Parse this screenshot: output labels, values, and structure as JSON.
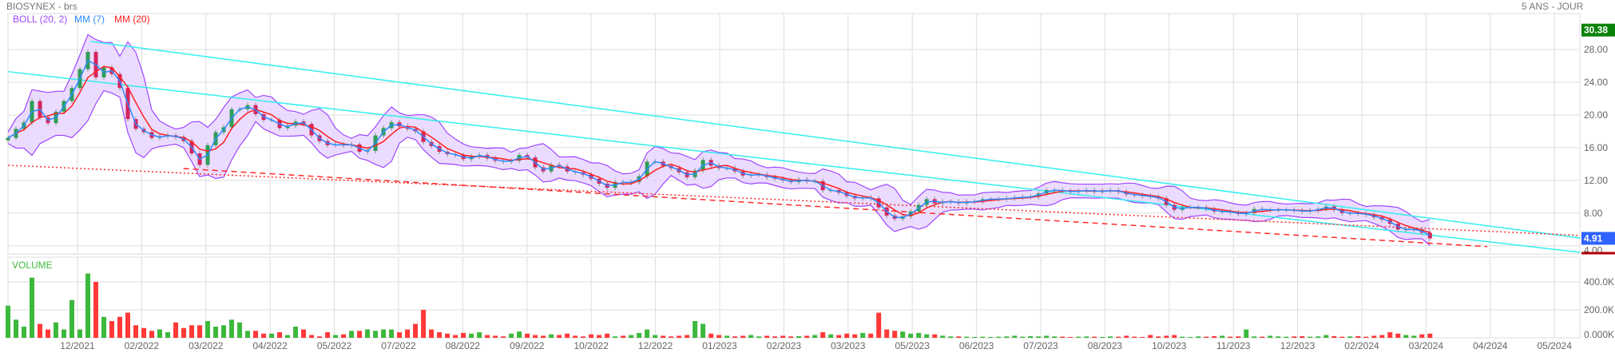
{
  "header": {
    "title": "BIOSYNEX - brs",
    "period": "5 ANS - JOUR"
  },
  "legend": {
    "boll": "BOLL (20, 2)",
    "mm7": "MM (7)",
    "mm20": "MM (20)"
  },
  "volume_label": "VOLUME",
  "colors": {
    "up": "#2f9e57",
    "down": "#d6245c",
    "vol_up": "#3cb83c",
    "vol_down": "#ff3838",
    "boll": "#a046ff",
    "boll_fill": "#e8d6ff",
    "mm7": "#2a8cff",
    "mm20": "#ff2020",
    "trend_cyan": "#33eeee",
    "trend_red": "#ff2a2a",
    "high_badge": "#0a820a",
    "last_badge": "#2f62ff",
    "low_marker": "#b00000",
    "grid": "#dddddd"
  },
  "chart_data": [
    {
      "type": "line",
      "style": "candlestick",
      "title": "BIOSYNEX - brs",
      "x_ticks": [
        "12/2021",
        "02/2022",
        "03/2022",
        "04/2022",
        "05/2022",
        "07/2022",
        "08/2022",
        "09/2022",
        "10/2022",
        "12/2022",
        "01/2023",
        "02/2023",
        "03/2023",
        "05/2023",
        "06/2023",
        "07/2023",
        "08/2023",
        "10/2023",
        "11/2023",
        "12/2023",
        "02/2024",
        "03/2024",
        "04/2024",
        "05/2024"
      ],
      "x_tick_positions": [
        0,
        1,
        2,
        3,
        4,
        5,
        6,
        7,
        8,
        9,
        10,
        11,
        12,
        13,
        14,
        15,
        16,
        17,
        18,
        19,
        20,
        21,
        22,
        23
      ],
      "y_ticks": [
        {
          "value": 28,
          "label": "28.00"
        },
        {
          "value": 24,
          "label": "24.00"
        },
        {
          "value": 20,
          "label": "20.00"
        },
        {
          "value": 16,
          "label": "16.00"
        },
        {
          "value": 12,
          "label": "12.00"
        },
        {
          "value": 8,
          "label": "8.00"
        },
        {
          "value": 4,
          "label": "4.00"
        }
      ],
      "ylim": [
        3.0,
        32.4
      ],
      "xlim": [
        -1.1,
        23.4
      ],
      "grid": true,
      "close_t_start": -1.082,
      "close_t_step": 0.1244,
      "close": [
        17.2,
        18.3,
        19.1,
        21.7,
        19.7,
        19.0,
        20.4,
        21.7,
        23.3,
        25.6,
        27.7,
        24.6,
        25.8,
        25.0,
        23.3,
        19.5,
        18.3,
        17.9,
        17.2,
        17.4,
        17.5,
        17.3,
        16.8,
        15.3,
        13.9,
        16.3,
        17.9,
        18.5,
        20.7,
        20.7,
        21.2,
        20.1,
        19.4,
        19.4,
        18.4,
        18.7,
        19.2,
        18.9,
        17.5,
        16.8,
        16.3,
        16.4,
        16.3,
        16.4,
        15.5,
        15.6,
        17.5,
        18.4,
        19.1,
        18.6,
        18.3,
        18.0,
        16.7,
        16.2,
        15.5,
        15.2,
        15.1,
        14.6,
        14.9,
        15.1,
        14.7,
        14.4,
        14.3,
        14.4,
        15.1,
        14.8,
        13.6,
        13.1,
        13.9,
        13.7,
        13.1,
        13.0,
        12.7,
        12.2,
        11.6,
        11.1,
        11.8,
        11.7,
        11.8,
        12.5,
        14.3,
        14.3,
        13.8,
        13.5,
        13.0,
        12.4,
        13.2,
        14.5,
        13.8,
        13.5,
        13.5,
        13.1,
        12.6,
        12.7,
        12.7,
        12.4,
        12.2,
        12.0,
        11.8,
        12.1,
        11.9,
        11.9,
        10.8,
        10.8,
        10.5,
        10.1,
        9.8,
        9.9,
        9.8,
        8.7,
        7.7,
        7.3,
        7.6,
        8.2,
        9.0,
        9.7,
        9.2,
        9.4,
        9.4,
        9.2,
        9.4,
        9.4,
        9.7,
        9.7,
        9.7,
        9.8,
        9.9,
        9.95,
        10.0,
        10.4,
        10.8,
        10.8,
        10.7,
        10.6,
        10.7,
        10.8,
        10.6,
        10.7,
        10.8,
        10.6,
        10.3,
        10.2,
        10.1,
        10.0,
        9.8,
        9.0,
        8.4,
        8.7,
        8.7,
        8.7,
        8.5,
        8.2,
        8.2,
        8.1,
        7.9,
        8.0,
        8.5,
        8.4,
        8.4,
        8.4,
        8.4,
        8.3,
        8.2,
        8.3,
        8.5,
        8.8,
        8.4,
        8.0,
        8.0,
        7.95,
        7.8,
        7.5,
        7.2,
        6.7,
        6.0,
        6.0,
        6.0,
        5.6,
        4.91
      ],
      "indicators": [
        "BOLL (20, 2)",
        "MM (7)",
        "MM (20)"
      ],
      "trendlines": [
        {
          "name": "upper-channel",
          "color": "cyan",
          "style": "solid",
          "from": [
            0.2,
            29.0
          ],
          "to": [
            23.4,
            4.95
          ]
        },
        {
          "name": "lower-channel",
          "color": "cyan",
          "style": "solid",
          "from": [
            -1.08,
            25.3
          ],
          "to": [
            23.4,
            3.2
          ]
        },
        {
          "name": "support-dotted",
          "color": "red",
          "style": "dotted",
          "from": [
            -1.08,
            13.85
          ],
          "to": [
            23.4,
            5.27
          ]
        },
        {
          "name": "support-dashed",
          "color": "red",
          "style": "dashed",
          "from": [
            1.65,
            13.45
          ],
          "to": [
            21.95,
            3.9
          ]
        }
      ],
      "badges": {
        "high": "30.38",
        "high_value": 30.38,
        "last": "4.91",
        "last_value": 4.91,
        "low_marker_value": 3.1
      }
    },
    {
      "type": "bar",
      "title": "VOLUME",
      "unit": "K",
      "y_ticks": [
        {
          "value": 400,
          "label": "400.0K"
        },
        {
          "value": 200,
          "label": "200.0K"
        },
        {
          "value": 0,
          "label": "0.000K"
        }
      ],
      "ylim": [
        0,
        577
      ],
      "values": [
        230,
        130,
        80,
        430,
        100,
        60,
        110,
        60,
        270,
        60,
        460,
        400,
        150,
        120,
        150,
        180,
        90,
        70,
        50,
        60,
        40,
        110,
        70,
        90,
        90,
        120,
        80,
        90,
        130,
        110,
        50,
        50,
        30,
        30,
        40,
        20,
        80,
        60,
        20,
        10,
        40,
        20,
        25,
        50,
        50,
        60,
        50,
        60,
        60,
        40,
        60,
        100,
        200,
        60,
        40,
        30,
        20,
        35,
        30,
        40,
        20,
        15,
        10,
        30,
        45,
        30,
        20,
        15,
        25,
        20,
        30,
        15,
        10,
        25,
        20,
        30,
        10,
        15,
        20,
        35,
        60,
        20,
        15,
        10,
        15,
        20,
        120,
        100,
        30,
        20,
        15,
        10,
        15,
        20,
        10,
        15,
        10,
        15,
        10,
        12,
        15,
        20,
        40,
        25,
        20,
        30,
        25,
        35,
        30,
        180,
        60,
        50,
        45,
        30,
        35,
        25,
        25,
        15,
        10,
        10,
        8,
        6,
        8,
        6,
        8,
        10,
        15,
        8,
        12,
        10,
        15,
        10,
        8,
        6,
        8,
        10,
        8,
        6,
        10,
        8,
        15,
        8,
        6,
        20,
        10,
        15,
        20,
        8,
        6,
        10,
        8,
        12,
        15,
        8,
        10,
        60,
        10,
        8,
        15,
        10,
        8,
        10,
        12,
        8,
        10,
        20,
        12,
        8,
        10,
        12,
        8,
        15,
        20,
        40,
        30,
        20,
        15,
        25,
        30
      ]
    }
  ]
}
